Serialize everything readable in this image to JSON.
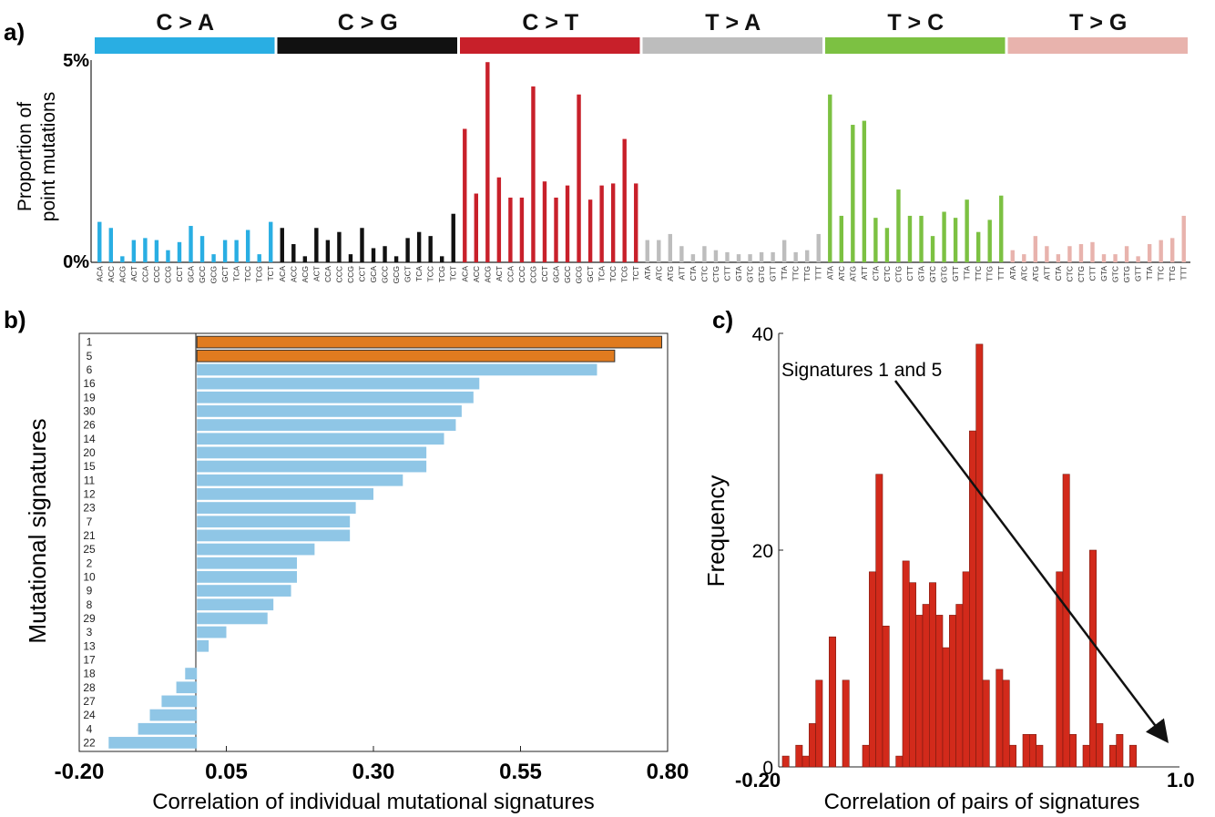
{
  "panel_labels": {
    "a": "a)",
    "b": "b)",
    "c": "c)"
  },
  "colors": {
    "C>A": "#29aee3",
    "C>G": "#111111",
    "C>T": "#c8202a",
    "T>A": "#bdbdbd",
    "T>C": "#7cc142",
    "T>G": "#e8b3ad",
    "highlight": "#e07b1f",
    "bar_b": "#8fc6e6",
    "hist": "#d22a1b"
  },
  "chart_data": [
    {
      "id": "a",
      "type": "bar",
      "ylabel": [
        "Proportion of",
        "point mutations"
      ],
      "ytick_labels": [
        "0%",
        "5%"
      ],
      "ylim": [
        0,
        5
      ],
      "mutation_types": [
        "C > A",
        "C > G",
        "C > T",
        "T > A",
        "T > C",
        "T > G"
      ],
      "series": [
        {
          "name": "C > A",
          "color_key": "C>A",
          "categories": [
            "ACA",
            "ACC",
            "ACG",
            "ACT",
            "CCA",
            "CCC",
            "CCG",
            "CCT",
            "GCA",
            "GCC",
            "GCG",
            "GCT",
            "TCA",
            "TCC",
            "TCG",
            "TCT"
          ],
          "values": [
            1.0,
            0.85,
            0.15,
            0.55,
            0.6,
            0.55,
            0.3,
            0.5,
            0.9,
            0.65,
            0.2,
            0.55,
            0.55,
            0.8,
            0.2,
            1.0
          ]
        },
        {
          "name": "C > G",
          "color_key": "C>G",
          "categories": [
            "ACA",
            "ACC",
            "ACG",
            "ACT",
            "CCA",
            "CCC",
            "CCG",
            "CCT",
            "GCA",
            "GCC",
            "GCG",
            "GCT",
            "TCA",
            "TCC",
            "TCG",
            "TCT"
          ],
          "values": [
            0.85,
            0.45,
            0.15,
            0.85,
            0.55,
            0.75,
            0.2,
            0.85,
            0.35,
            0.4,
            0.15,
            0.6,
            0.75,
            0.65,
            0.15,
            1.2
          ]
        },
        {
          "name": "C > T",
          "color_key": "C>T",
          "categories": [
            "ACA",
            "ACC",
            "ACG",
            "ACT",
            "CCA",
            "CCC",
            "CCG",
            "CCT",
            "GCA",
            "GCC",
            "GCG",
            "GCT",
            "TCA",
            "TCC",
            "TCG",
            "TCT"
          ],
          "values": [
            3.3,
            1.7,
            4.95,
            2.1,
            1.6,
            1.6,
            4.35,
            2.0,
            1.6,
            1.9,
            4.15,
            1.55,
            1.9,
            1.95,
            3.05,
            1.95
          ]
        },
        {
          "name": "T > A",
          "color_key": "T>A",
          "categories": [
            "ATA",
            "ATC",
            "ATG",
            "ATT",
            "CTA",
            "CTC",
            "CTG",
            "CTT",
            "GTA",
            "GTC",
            "GTG",
            "GTT",
            "TTA",
            "TTC",
            "TTG",
            "TTT"
          ],
          "values": [
            0.55,
            0.55,
            0.7,
            0.4,
            0.2,
            0.4,
            0.3,
            0.25,
            0.2,
            0.2,
            0.25,
            0.25,
            0.55,
            0.25,
            0.3,
            0.7
          ]
        },
        {
          "name": "T > C",
          "color_key": "T>C",
          "categories": [
            "ATA",
            "ATC",
            "ATG",
            "ATT",
            "CTA",
            "CTC",
            "CTG",
            "CTT",
            "GTA",
            "GTC",
            "GTG",
            "GTT",
            "TTA",
            "TTC",
            "TTG",
            "TTT"
          ],
          "values": [
            4.15,
            1.15,
            3.4,
            3.5,
            1.1,
            0.85,
            1.8,
            1.15,
            1.15,
            0.65,
            1.25,
            1.1,
            1.55,
            0.75,
            1.05,
            1.65
          ]
        },
        {
          "name": "T > G",
          "color_key": "T>G",
          "categories": [
            "ATA",
            "ATC",
            "ATG",
            "ATT",
            "CTA",
            "CTC",
            "CTG",
            "CTT",
            "GTA",
            "GTC",
            "GTG",
            "GTT",
            "TTA",
            "TTC",
            "TTG",
            "TTT"
          ],
          "values": [
            0.3,
            0.2,
            0.65,
            0.4,
            0.2,
            0.4,
            0.45,
            0.5,
            0.2,
            0.2,
            0.4,
            0.15,
            0.45,
            0.55,
            0.6,
            1.15
          ]
        }
      ]
    },
    {
      "id": "b",
      "type": "bar",
      "orientation": "horizontal",
      "xlabel": "Correlation of individual mutational signatures",
      "ylabel": "Mutational signatures",
      "xlim": [
        -0.2,
        0.8
      ],
      "xtick_labels": [
        "-0.20",
        "0.05",
        "0.30",
        "0.55",
        "0.80"
      ],
      "xticks": [
        -0.2,
        0.05,
        0.3,
        0.55,
        0.8
      ],
      "categories": [
        "1",
        "5",
        "6",
        "16",
        "19",
        "30",
        "26",
        "14",
        "20",
        "15",
        "11",
        "12",
        "23",
        "7",
        "21",
        "25",
        "2",
        "10",
        "9",
        "8",
        "29",
        "3",
        "13",
        "17",
        "18",
        "28",
        "27",
        "24",
        "4",
        "22"
      ],
      "values": [
        0.79,
        0.71,
        0.68,
        0.48,
        0.47,
        0.45,
        0.44,
        0.42,
        0.39,
        0.39,
        0.35,
        0.3,
        0.27,
        0.26,
        0.26,
        0.2,
        0.17,
        0.17,
        0.16,
        0.13,
        0.12,
        0.05,
        0.02,
        0.0,
        -0.02,
        -0.035,
        -0.06,
        -0.08,
        -0.1,
        -0.15
      ],
      "highlighted": [
        "1",
        "5"
      ]
    },
    {
      "id": "c",
      "type": "bar",
      "subtype": "histogram",
      "xlabel": "Correlation of pairs of signatures",
      "ylabel": "Frequency",
      "xlim": [
        -0.2,
        1.0
      ],
      "xtick_labels": [
        "-0.20",
        "1.0"
      ],
      "ylim": [
        0,
        40
      ],
      "ytick_labels": [
        "0",
        "20",
        "40"
      ],
      "yticks": [
        0,
        20,
        40
      ],
      "bin_width": 0.02,
      "values": [
        1,
        0,
        2,
        1,
        4,
        8,
        0,
        12,
        0,
        8,
        0,
        0,
        2,
        18,
        27,
        13,
        0,
        1,
        19,
        17,
        14,
        15,
        17,
        14,
        11,
        14,
        15,
        18,
        31,
        39,
        8,
        0,
        9,
        8,
        2,
        0,
        3,
        3,
        2,
        0,
        0,
        18,
        27,
        3,
        0,
        2,
        20,
        4,
        0,
        2,
        3,
        0,
        2
      ],
      "annotation": {
        "text": "Signatures 1 and 5",
        "target_x": 0.99,
        "target_y": 2
      }
    }
  ]
}
